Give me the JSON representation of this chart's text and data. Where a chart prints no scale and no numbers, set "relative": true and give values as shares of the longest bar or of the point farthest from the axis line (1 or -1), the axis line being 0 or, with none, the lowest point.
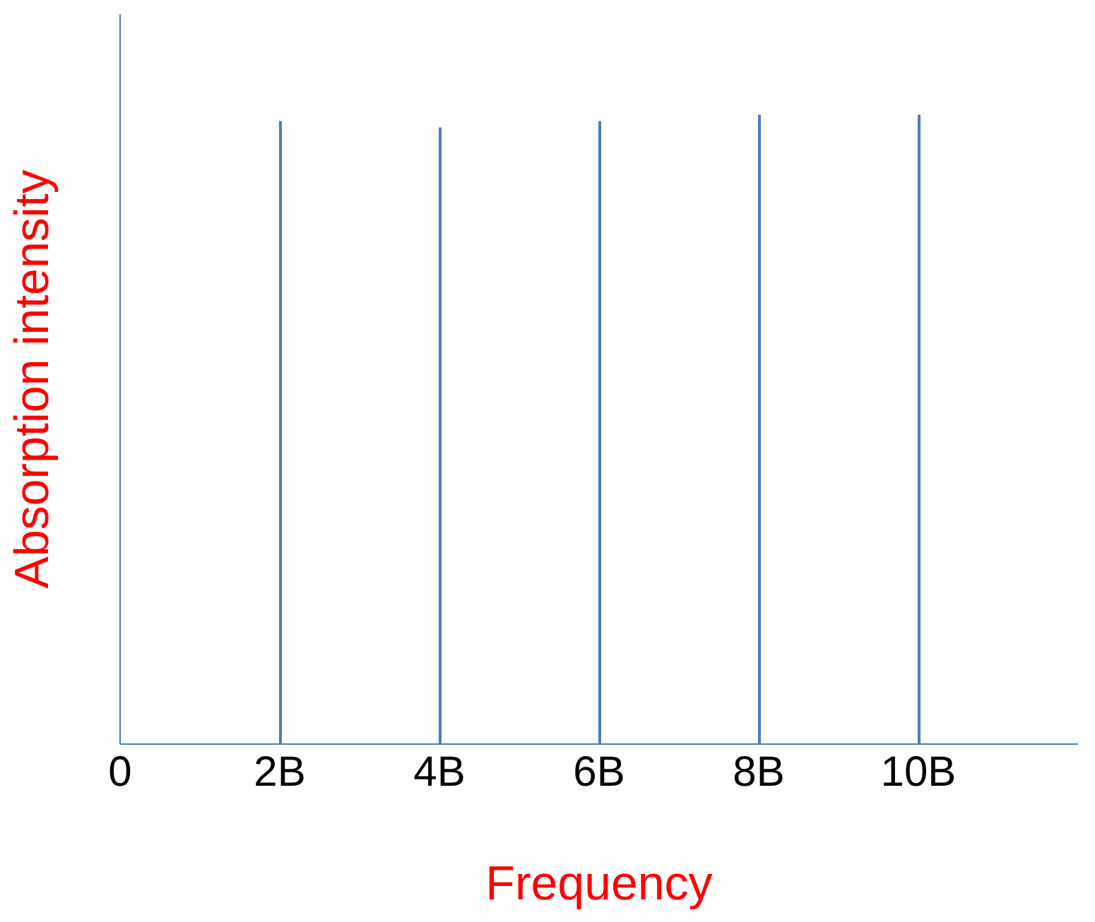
{
  "chart_data": {
    "type": "bar",
    "relative": true,
    "xlabel": "Frequency",
    "ylabel": "Absorption intensity",
    "x": [
      2,
      4,
      6,
      8,
      10
    ],
    "values": [
      0.99,
      0.98,
      0.99,
      1,
      1
    ],
    "color": "#4a7ebb",
    "xlim": [
      0,
      12
    ],
    "xticks": [
      0,
      {
        "value": 2,
        "label": "2B"
      },
      {
        "value": 4,
        "label": "4B"
      },
      {
        "value": 6,
        "label": "6B"
      },
      {
        "value": 8,
        "label": "8B"
      },
      {
        "value": 10,
        "label": "10B"
      }
    ],
    "legend": false,
    "grid": false
  }
}
